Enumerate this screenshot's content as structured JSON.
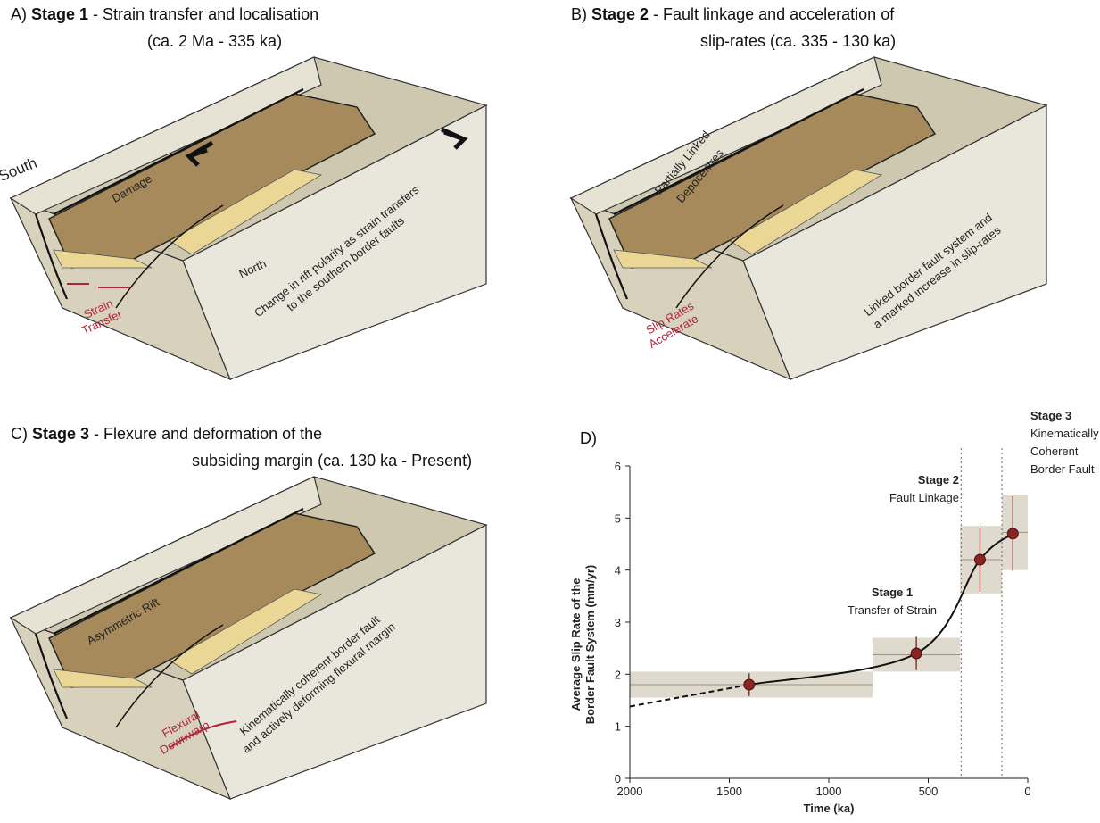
{
  "panels": [
    {
      "label": "A)",
      "stage": "Stage 1",
      "title_line1": " - Strain transfer and localisation",
      "title_line2": "(ca. 2 Ma - 335 ka)",
      "labels": [
        "South",
        "Damage",
        "North"
      ],
      "annotation_lines": [
        "Change in rift polarity as strain transfers",
        "to the southern border faults"
      ],
      "red_label_lines": [
        "Strain",
        "Transfer"
      ]
    },
    {
      "label": "B)",
      "stage": "Stage 2",
      "title_line1": " - Fault linkage and acceleration of",
      "title_line2": "slip-rates (ca. 335 - 130 ka)",
      "labels": [
        "Partially Linked",
        "Depocentres"
      ],
      "annotation_lines": [
        "Linked border fault system and",
        "a marked increase in slip-rates"
      ],
      "red_label_lines": [
        "Slip Rates",
        "Accelerate"
      ]
    },
    {
      "label": "C)",
      "stage": "Stage 3",
      "title_line1": " - Flexure and deformation of the",
      "title_line2": "subsiding margin (ca. 130 ka - Present)",
      "labels": [
        "Asymmetric Rift"
      ],
      "annotation_lines": [
        "Kinematically coherent border fault",
        "and actively deforming flexural margin"
      ],
      "red_label_lines": [
        "Flexural",
        "Downwarp"
      ]
    }
  ],
  "chart_data": {
    "type": "scatter",
    "panel_label": "D)",
    "xlabel": "Time (ka)",
    "ylabel_lines": [
      "Average Slip Rate of the",
      "Border Fault System (mm/yr)"
    ],
    "xlim": [
      2000,
      0
    ],
    "ylim": [
      0,
      6
    ],
    "xticks": [
      2000,
      1500,
      1000,
      500,
      0
    ],
    "yticks": [
      0,
      1,
      2,
      3,
      4,
      5,
      6
    ],
    "color": "#8b2323",
    "x": [
      1400,
      560,
      240,
      75
    ],
    "values": [
      1.8,
      2.4,
      4.2,
      4.7
    ],
    "y_errors": [
      0.22,
      0.32,
      0.62,
      0.72
    ],
    "x_ranges": [
      [
        2000,
        780
      ],
      [
        780,
        340
      ],
      [
        340,
        130
      ],
      [
        130,
        0
      ]
    ],
    "y_ranges": [
      [
        1.55,
        2.05
      ],
      [
        2.05,
        2.7
      ],
      [
        3.55,
        4.85
      ],
      [
        4.0,
        5.45
      ]
    ],
    "extrapolation": {
      "x": [
        2000,
        1400
      ],
      "values": [
        1.38,
        1.8
      ]
    },
    "stage_boundaries": [
      335,
      130
    ],
    "annotations": [
      {
        "title": "Stage 1",
        "lines": [
          "Transfer of Strain"
        ]
      },
      {
        "title": "Stage 2",
        "lines": [
          "Fault Linkage"
        ]
      },
      {
        "title": "Stage 3",
        "lines": [
          "Kinematically",
          "Coherent",
          "Border Fault"
        ]
      }
    ]
  }
}
